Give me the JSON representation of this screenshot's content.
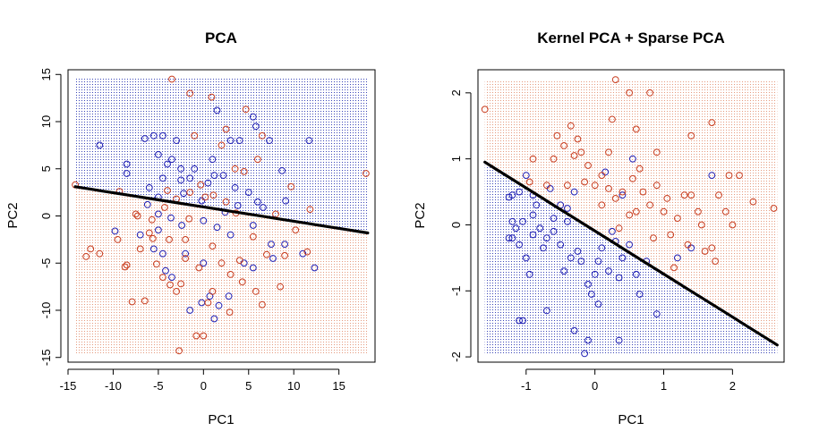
{
  "colors": {
    "class_a": "#1f1fb4",
    "class_b": "#c83c1e",
    "region_a": "#3b46b8",
    "region_b": "#e59a7e",
    "boundary": "#000000",
    "frame": "#000000",
    "background": "#ffffff"
  },
  "chart_data": [
    {
      "type": "scatter",
      "title": "PCA",
      "xlabel": "PC1",
      "ylabel": "PC2",
      "xlim": [
        -15,
        19
      ],
      "ylim": [
        -15.5,
        15.5
      ],
      "region_extent": {
        "x": [
          -14.2,
          18.2
        ],
        "y": [
          -14.6,
          14.6
        ]
      },
      "xticks": [
        -15,
        -10,
        -5,
        0,
        5,
        10,
        15
      ],
      "xtick_labels": [
        "-15",
        "-10",
        "-5",
        "0",
        "5",
        "10",
        "15"
      ],
      "yticks": [
        -15,
        -10,
        -5,
        0,
        5,
        10,
        15
      ],
      "ytick_labels": [
        "-15",
        "-10",
        "-5",
        "0",
        "5",
        "10",
        "15"
      ],
      "grid": false,
      "legend": "none",
      "decision_boundary": {
        "x": [
          -14.2,
          18.2
        ],
        "y": [
          3.1,
          -1.8
        ],
        "region_above": "class_a",
        "region_below": "class_b"
      },
      "series": [
        {
          "class": "class_a",
          "points": [
            [
              -11.5,
              7.5
            ],
            [
              -8.5,
              5.5
            ],
            [
              -6.5,
              8.2
            ],
            [
              -5.5,
              8.5
            ],
            [
              -4.5,
              8.5
            ],
            [
              -3,
              8
            ],
            [
              -5,
              6.5
            ],
            [
              -4,
              5.5
            ],
            [
              -3.5,
              6
            ],
            [
              -2.5,
              5
            ],
            [
              -1,
              5
            ],
            [
              1,
              6
            ],
            [
              1.5,
              11.2
            ],
            [
              3,
              8
            ],
            [
              4,
              8
            ],
            [
              5.5,
              10.5
            ],
            [
              5.8,
              9.5
            ],
            [
              7.3,
              8
            ],
            [
              8.7,
              4.8
            ],
            [
              11.7,
              8
            ],
            [
              -8.5,
              4.5
            ],
            [
              -6,
              3
            ],
            [
              -5,
              2
            ],
            [
              -4.5,
              4
            ],
            [
              -2.5,
              3.8
            ],
            [
              -1.5,
              4
            ],
            [
              0.5,
              3.5
            ],
            [
              1.2,
              4.3
            ],
            [
              2.2,
              4.3
            ],
            [
              3.5,
              3
            ],
            [
              5,
              2.5
            ],
            [
              6,
              1.5
            ],
            [
              -9.8,
              -1.6
            ],
            [
              -7,
              -2
            ],
            [
              -5,
              -1.5
            ],
            [
              -3.6,
              -0.2
            ],
            [
              -2.4,
              -1
            ],
            [
              0,
              -0.5
            ],
            [
              1.5,
              -1.2
            ],
            [
              3,
              -2
            ],
            [
              5.5,
              -1
            ],
            [
              7.5,
              -3
            ],
            [
              9,
              -3
            ],
            [
              11,
              -4
            ],
            [
              -5.5,
              -3.5
            ],
            [
              -4.5,
              -4
            ],
            [
              -4.2,
              -5.8
            ],
            [
              -3.5,
              -6.5
            ],
            [
              -2,
              -4
            ],
            [
              0,
              -5
            ],
            [
              0.7,
              -8.5
            ],
            [
              2.8,
              -8.5
            ],
            [
              4.5,
              -5
            ],
            [
              5.5,
              -5.5
            ],
            [
              7.7,
              -4.5
            ],
            [
              12.3,
              -5.5
            ],
            [
              -1.5,
              -10
            ],
            [
              -0.2,
              -9.2
            ],
            [
              1.7,
              -9.5
            ],
            [
              1.2,
              -10.9
            ],
            [
              -5,
              0.2
            ],
            [
              -6.2,
              1.2
            ],
            [
              3.8,
              1.1
            ],
            [
              -2.2,
              2.4
            ],
            [
              -0.2,
              1.6
            ],
            [
              2.4,
              0.4
            ],
            [
              6.6,
              0.9
            ],
            [
              9.1,
              1.6
            ]
          ]
        },
        {
          "class": "class_b",
          "points": [
            [
              -14.2,
              3.3
            ],
            [
              -12.5,
              -3.5
            ],
            [
              -11.5,
              -4
            ],
            [
              -13,
              -4.3
            ],
            [
              -9.5,
              -2.5
            ],
            [
              -8.5,
              -5.2
            ],
            [
              -7.5,
              0.2
            ],
            [
              -7.3,
              0
            ],
            [
              -7,
              -3.5
            ],
            [
              -6.5,
              -9
            ],
            [
              -5.7,
              -0.4
            ],
            [
              -5.6,
              -2.4
            ],
            [
              -5.2,
              -5.1
            ],
            [
              -4.5,
              -6.5
            ],
            [
              -3.8,
              -2.5
            ],
            [
              -3.7,
              -7.3
            ],
            [
              -3,
              -8
            ],
            [
              -3.5,
              14.5
            ],
            [
              -3,
              1.8
            ],
            [
              -2.5,
              -7.2
            ],
            [
              -2,
              -4.5
            ],
            [
              -1.5,
              13
            ],
            [
              -1,
              8.5
            ],
            [
              -0.5,
              -5.5
            ],
            [
              0,
              -12.7
            ],
            [
              0.5,
              -9.2
            ],
            [
              1,
              -8
            ],
            [
              2,
              7.5
            ],
            [
              2.5,
              9.2
            ],
            [
              3,
              -6.2
            ],
            [
              4,
              -4.7
            ],
            [
              4.3,
              -7
            ],
            [
              5.5,
              -2.2
            ],
            [
              5.8,
              -8
            ],
            [
              6.5,
              8.5
            ],
            [
              7,
              -4.1
            ],
            [
              8,
              0.2
            ],
            [
              8.5,
              -7.5
            ],
            [
              9,
              -4.2
            ],
            [
              10.2,
              -1.5
            ],
            [
              11.5,
              -3.8
            ],
            [
              18,
              4.5
            ],
            [
              -4,
              2.7
            ],
            [
              -1.5,
              2.5
            ],
            [
              -0.3,
              3.3
            ],
            [
              0.2,
              2
            ],
            [
              1.1,
              2.2
            ],
            [
              2.5,
              1.5
            ],
            [
              3.5,
              5
            ],
            [
              4.5,
              4.7
            ],
            [
              6,
              6
            ],
            [
              -2,
              -2.5
            ],
            [
              -1.6,
              -0.3
            ],
            [
              1,
              -3.2
            ],
            [
              2,
              -5
            ],
            [
              3.6,
              0.3
            ],
            [
              -4.3,
              0.9
            ],
            [
              -7.9,
              -9.1
            ],
            [
              -2.7,
              -14.3
            ],
            [
              -0.8,
              -12.7
            ],
            [
              2.9,
              -10.2
            ],
            [
              6.5,
              -9.4
            ],
            [
              9.7,
              3.1
            ],
            [
              11.8,
              0.7
            ],
            [
              -8.7,
              -5.4
            ],
            [
              -6,
              -1.8
            ],
            [
              0.9,
              12.6
            ],
            [
              4.7,
              11.3
            ],
            [
              -9.3,
              2.6
            ]
          ]
        }
      ]
    },
    {
      "type": "scatter",
      "title": "Kernel PCA + Sparse PCA",
      "xlabel": "PC1",
      "ylabel": "PC2",
      "xlim": [
        -1.7,
        2.75
      ],
      "ylim": [
        -2.08,
        2.35
      ],
      "region_extent": {
        "x": [
          -1.6,
          2.65
        ],
        "y": [
          -1.97,
          2.2
        ]
      },
      "xticks": [
        -1,
        0,
        1,
        2
      ],
      "xtick_labels": [
        "-1",
        "0",
        "1",
        "2"
      ],
      "yticks": [
        -2,
        -1,
        0,
        1,
        2
      ],
      "ytick_labels": [
        "-2",
        "-1",
        "0",
        "1",
        "2"
      ],
      "grid": false,
      "legend": "none",
      "decision_boundary": {
        "x": [
          -1.6,
          2.65
        ],
        "y": [
          0.95,
          -1.82
        ],
        "region_above": "class_b",
        "region_below": "class_a"
      },
      "series": [
        {
          "class": "class_a",
          "points": [
            [
              -1.2,
              0.45
            ],
            [
              -1.25,
              0.42
            ],
            [
              -1,
              0.75
            ],
            [
              -1.1,
              0.5
            ],
            [
              -0.9,
              0.45
            ],
            [
              -1.2,
              -0.2
            ],
            [
              -1.25,
              -0.2
            ],
            [
              -1.1,
              -0.3
            ],
            [
              -1,
              -0.5
            ],
            [
              -0.9,
              -0.15
            ],
            [
              -0.8,
              -0.05
            ],
            [
              -0.7,
              -0.2
            ],
            [
              -0.6,
              -0.1
            ],
            [
              -0.5,
              -0.3
            ],
            [
              -0.45,
              -0.7
            ],
            [
              -0.4,
              0.25
            ],
            [
              -0.35,
              -0.5
            ],
            [
              -0.25,
              -0.4
            ],
            [
              -0.2,
              -0.55
            ],
            [
              -0.1,
              -0.9
            ],
            [
              0,
              -0.75
            ],
            [
              0.05,
              -0.55
            ],
            [
              0.1,
              -0.35
            ],
            [
              0.2,
              -0.7
            ],
            [
              0.3,
              -0.25
            ],
            [
              0.35,
              -0.8
            ],
            [
              0.4,
              -0.5
            ],
            [
              0.5,
              -0.3
            ],
            [
              0.6,
              -0.75
            ],
            [
              0.75,
              -0.55
            ],
            [
              0.9,
              -1.35
            ],
            [
              1.2,
              -0.5
            ],
            [
              1.4,
              -0.35
            ],
            [
              1.7,
              0.75
            ],
            [
              -1.05,
              -1.45
            ],
            [
              -1.1,
              -1.45
            ],
            [
              -0.7,
              -1.3
            ],
            [
              -0.3,
              -1.6
            ],
            [
              -0.1,
              -1.75
            ],
            [
              -0.15,
              -1.95
            ],
            [
              -0.05,
              -1.05
            ],
            [
              0.35,
              -1.75
            ],
            [
              0.55,
              1
            ],
            [
              0.15,
              0.8
            ],
            [
              -0.5,
              0.3
            ],
            [
              -0.85,
              0.3
            ],
            [
              -0.65,
              0.55
            ],
            [
              -0.3,
              0.5
            ],
            [
              0.4,
              0.45
            ],
            [
              -1.05,
              0.05
            ],
            [
              -0.4,
              0.05
            ],
            [
              0.25,
              -0.1
            ],
            [
              -0.6,
              0.1
            ],
            [
              -1.2,
              0.05
            ],
            [
              -0.95,
              -0.75
            ],
            [
              -0.75,
              -0.35
            ],
            [
              0.05,
              -1.2
            ],
            [
              0.65,
              -1.05
            ],
            [
              -0.9,
              0.15
            ],
            [
              -1.15,
              -0.05
            ]
          ]
        },
        {
          "class": "class_b",
          "points": [
            [
              -1.6,
              1.75
            ],
            [
              -0.9,
              1
            ],
            [
              -0.6,
              1
            ],
            [
              -0.55,
              1.35
            ],
            [
              -0.35,
              1.5
            ],
            [
              -0.3,
              1.05
            ],
            [
              -0.25,
              1.3
            ],
            [
              -0.2,
              1.1
            ],
            [
              -0.1,
              0.9
            ],
            [
              0,
              0.6
            ],
            [
              0.1,
              0.75
            ],
            [
              0.2,
              0.55
            ],
            [
              0.3,
              0.4
            ],
            [
              0.4,
              0.5
            ],
            [
              0.5,
              0.15
            ],
            [
              0.6,
              0.2
            ],
            [
              0.7,
              0.5
            ],
            [
              0.8,
              0.3
            ],
            [
              0.9,
              0.6
            ],
            [
              1,
              0.2
            ],
            [
              1.1,
              -0.15
            ],
            [
              1.2,
              0.1
            ],
            [
              1.3,
              0.45
            ],
            [
              1.4,
              0.45
            ],
            [
              1.5,
              0.2
            ],
            [
              1.6,
              -0.4
            ],
            [
              1.7,
              -0.35
            ],
            [
              1.8,
              0.45
            ],
            [
              1.9,
              0.2
            ],
            [
              2.1,
              0.75
            ],
            [
              2.3,
              0.35
            ],
            [
              2.6,
              0.25
            ],
            [
              0.3,
              2.2
            ],
            [
              0.5,
              2
            ],
            [
              0.8,
              2
            ],
            [
              1.4,
              1.35
            ],
            [
              1.7,
              1.55
            ],
            [
              0.2,
              1.1
            ],
            [
              0.6,
              1.45
            ],
            [
              0.9,
              1.1
            ],
            [
              -0.45,
              1.2
            ],
            [
              -0.7,
              0.6
            ],
            [
              -0.4,
              0.6
            ],
            [
              0.1,
              0.3
            ],
            [
              0.35,
              -0.05
            ],
            [
              0.55,
              0.7
            ],
            [
              0.85,
              -0.2
            ],
            [
              1.05,
              0.4
            ],
            [
              1.35,
              -0.3
            ],
            [
              1.55,
              0
            ],
            [
              2,
              0
            ],
            [
              1.75,
              -0.55
            ],
            [
              1.15,
              -0.65
            ],
            [
              0.65,
              0.85
            ],
            [
              -0.15,
              0.65
            ],
            [
              -0.95,
              0.65
            ],
            [
              1.95,
              0.75
            ],
            [
              0.25,
              1.6
            ]
          ]
        }
      ]
    }
  ]
}
